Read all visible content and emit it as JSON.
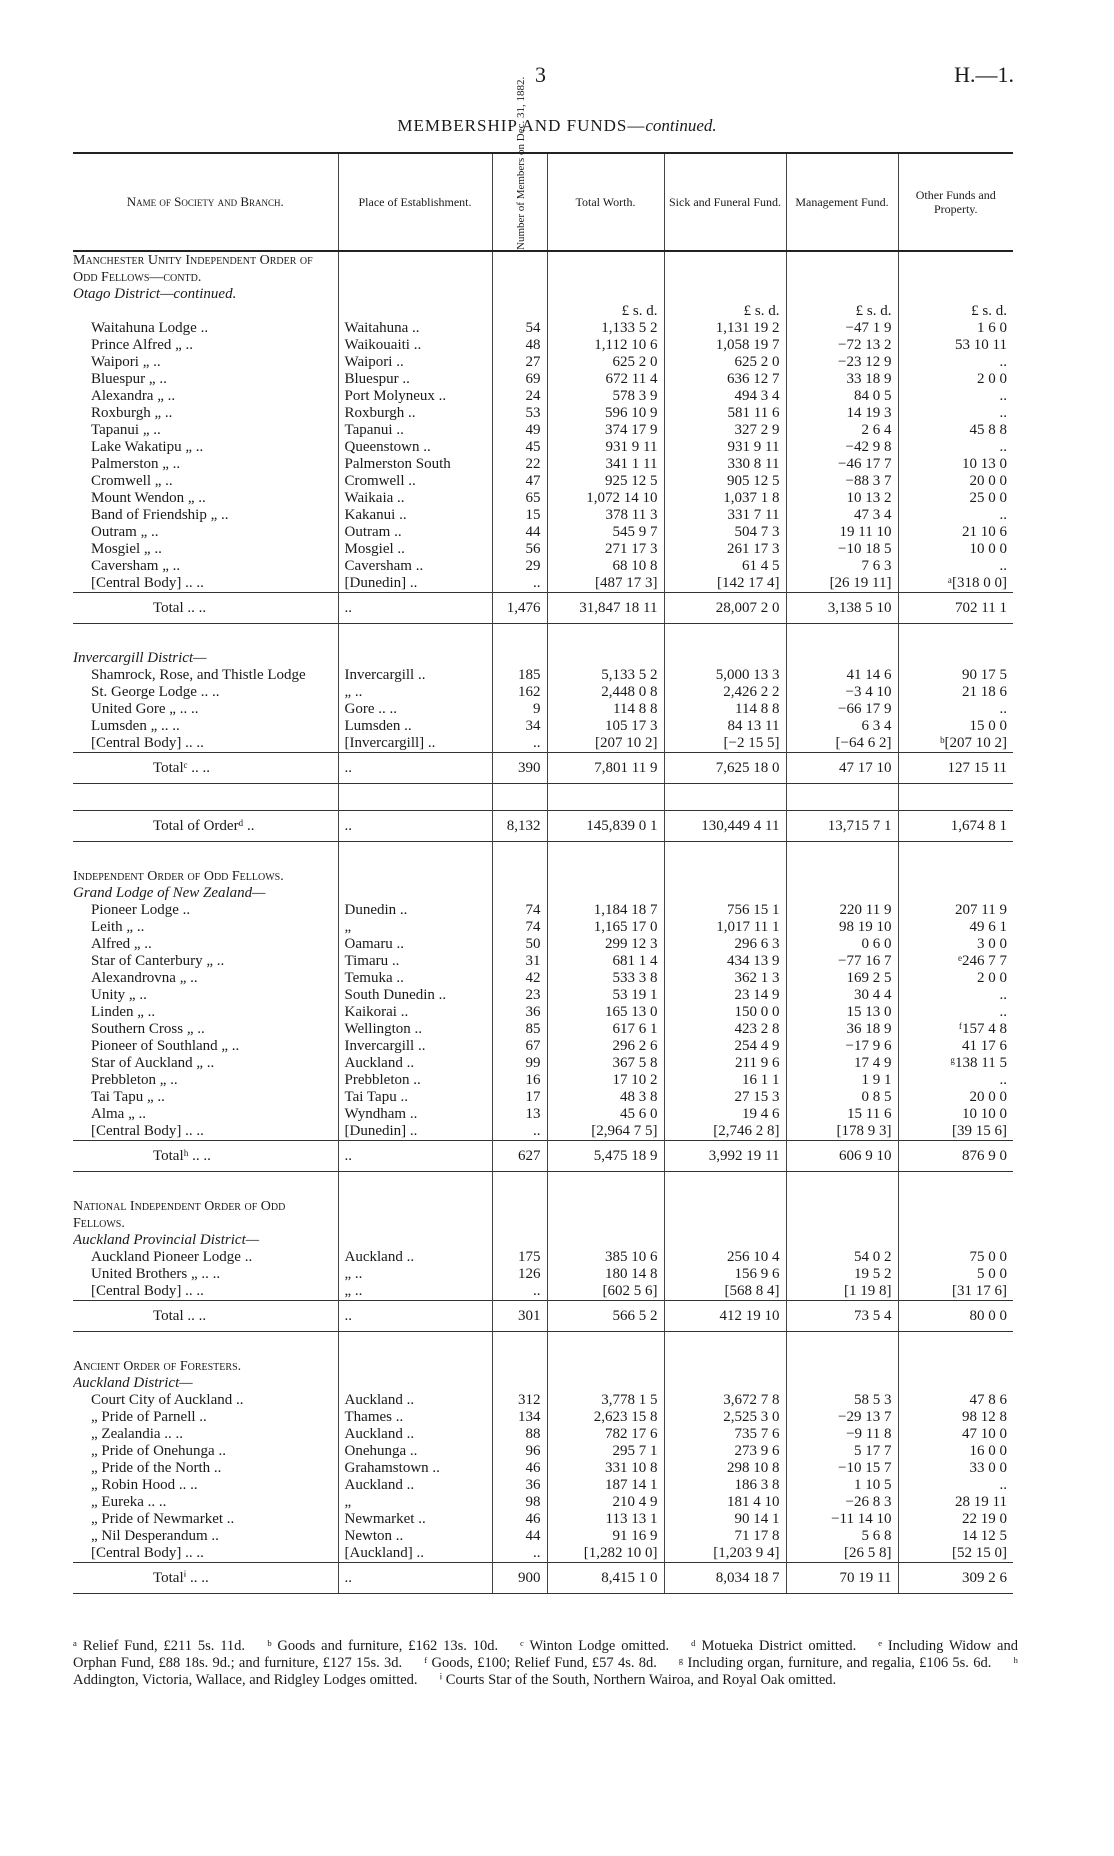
{
  "header": {
    "page_number": "3",
    "reference": "H.—1.",
    "title": "MEMBERSHIP AND FUNDS—",
    "title_italic": "continued."
  },
  "table": {
    "columns": [
      "Name of Society and Branch.",
      "Place of Establishment.",
      "Number of Members on Dec. 31, 1882.",
      "Total Worth.",
      "Sick and Funeral Fund.",
      "Management Fund.",
      "Other Funds and Property."
    ],
    "sections": [
      {
        "headings": [
          {
            "text": "Manchester Unity Independent Order of Odd Fellows—contd.",
            "style": "caps"
          },
          {
            "text": "Otago District—continued.",
            "style": "italic"
          }
        ],
        "units": [
          null,
          null,
          null,
          "£ s. d.",
          "£ s. d.",
          "£ s. d.",
          "£ s. d."
        ],
        "rows": [
          [
            "Waitahuna Lodge ..",
            "Waitahuna ..",
            "54",
            "1,133 5 2",
            "1,131 19 2",
            "−47 1 9",
            "1 6 0"
          ],
          [
            "Prince Alfred „ ..",
            "Waikouaiti ..",
            "48",
            "1,112 10 6",
            "1,058 19 7",
            "−72 13 2",
            "53 10 11"
          ],
          [
            "Waipori „ ..",
            "Waipori ..",
            "27",
            "625 2 0",
            "625 2 0",
            "−23 12 9",
            ".."
          ],
          [
            "Bluespur „ ..",
            "Bluespur ..",
            "69",
            "672 11 4",
            "636 12 7",
            "33 18 9",
            "2 0 0"
          ],
          [
            "Alexandra „ ..",
            "Port Molyneux ..",
            "24",
            "578 3 9",
            "494 3 4",
            "84 0 5",
            ".."
          ],
          [
            "Roxburgh „ ..",
            "Roxburgh ..",
            "53",
            "596 10 9",
            "581 11 6",
            "14 19 3",
            ".."
          ],
          [
            "Tapanui „ ..",
            "Tapanui ..",
            "49",
            "374 17 9",
            "327 2 9",
            "2 6 4",
            "45 8 8"
          ],
          [
            "Lake Wakatipu „ ..",
            "Queenstown ..",
            "45",
            "931 9 11",
            "931 9 11",
            "−42 9 8",
            ".."
          ],
          [
            "Palmerston „ ..",
            "Palmerston South",
            "22",
            "341 1 11",
            "330 8 11",
            "−46 17 7",
            "10 13 0"
          ],
          [
            "Cromwell „ ..",
            "Cromwell ..",
            "47",
            "925 12 5",
            "905 12 5",
            "−88 3 7",
            "20 0 0"
          ],
          [
            "Mount Wendon „ ..",
            "Waikaia ..",
            "65",
            "1,072 14 10",
            "1,037 1 8",
            "10 13 2",
            "25 0 0"
          ],
          [
            "Band of Friendship „ ..",
            "Kakanui ..",
            "15",
            "378 11 3",
            "331 7 11",
            "47 3 4",
            ".."
          ],
          [
            "Outram „ ..",
            "Outram ..",
            "44",
            "545 9 7",
            "504 7 3",
            "19 11 10",
            "21 10 6"
          ],
          [
            "Mosgiel „ ..",
            "Mosgiel ..",
            "56",
            "271 17 3",
            "261 17 3",
            "−10 18 5",
            "10 0 0"
          ],
          [
            "Caversham „ ..",
            "Caversham ..",
            "29",
            "68 10 8",
            "61 4 5",
            "7 6 3",
            ".."
          ],
          [
            "[Central Body] .. ..",
            "[Dunedin] ..",
            "..",
            "[487 17 3]",
            "[142 17 4]",
            "[26 19 11]",
            "ᵃ[318 0 0]"
          ]
        ],
        "totals": [
          [
            "Total .. ..",
            "..",
            "1,476",
            "31,847 18 11",
            "28,007 2 0",
            "3,138 5 10",
            "702 11 1"
          ]
        ]
      },
      {
        "headings": [
          {
            "text": "Invercargill District—",
            "style": "italic"
          }
        ],
        "rows": [
          [
            "Shamrock, Rose, and Thistle Lodge",
            "Invercargill ..",
            "185",
            "5,133 5 2",
            "5,000 13 3",
            "41 14 6",
            "90 17 5"
          ],
          [
            "St. George Lodge .. ..",
            "„ ..",
            "162",
            "2,448 0 8",
            "2,426 2 2",
            "−3 4 10",
            "21 18 6"
          ],
          [
            "United Gore „ .. ..",
            "Gore .. ..",
            "9",
            "114 8 8",
            "114 8 8",
            "−66 17 9",
            ".."
          ],
          [
            "Lumsden „ .. ..",
            "Lumsden ..",
            "34",
            "105 17 3",
            "84 13 11",
            "6 3 4",
            "15 0 0"
          ],
          [
            "[Central Body] .. ..",
            "[Invercargill] ..",
            "..",
            "[207 10 2]",
            "[−2 15 5]",
            "[−64 6 2]",
            "ᵇ[207 10 2]"
          ]
        ],
        "totals": [
          [
            "Totalᶜ .. ..",
            "..",
            "390",
            "7,801 11 9",
            "7,625 18 0",
            "47 17 10",
            "127 15 11"
          ],
          [
            "Total of Orderᵈ ..",
            "..",
            "8,132",
            "145,839 0 1",
            "130,449 4 11",
            "13,715 7 1",
            "1,674 8 1"
          ]
        ]
      },
      {
        "headings": [
          {
            "text": "Independent Order of Odd Fellows.",
            "style": "caps"
          },
          {
            "text": "Grand Lodge of New Zealand—",
            "style": "italic"
          }
        ],
        "rows": [
          [
            "Pioneer Lodge ..",
            "Dunedin ..",
            "74",
            "1,184 18 7",
            "756 15 1",
            "220 11 9",
            "207 11 9"
          ],
          [
            "Leith „ ..",
            "„",
            "74",
            "1,165 17 0",
            "1,017 11 1",
            "98 19 10",
            "49 6 1"
          ],
          [
            "Alfred „ ..",
            "Oamaru ..",
            "50",
            "299 12 3",
            "296 6 3",
            "0 6 0",
            "3 0 0"
          ],
          [
            "Star of Canterbury „ ..",
            "Timaru ..",
            "31",
            "681 1 4",
            "434 13 9",
            "−77 16 7",
            "ᵉ246 7 7"
          ],
          [
            "Alexandrovna „ ..",
            "Temuka ..",
            "42",
            "533 3 8",
            "362 1 3",
            "169 2 5",
            "2 0 0"
          ],
          [
            "Unity „ ..",
            "South Dunedin ..",
            "23",
            "53 19 1",
            "23 14 9",
            "30 4 4",
            ".."
          ],
          [
            "Linden „ ..",
            "Kaikorai ..",
            "36",
            "165 13 0",
            "150 0 0",
            "15 13 0",
            ".."
          ],
          [
            "Southern Cross „ ..",
            "Wellington ..",
            "85",
            "617 6 1",
            "423 2 8",
            "36 18 9",
            "ᶠ157 4 8"
          ],
          [
            "Pioneer of Southland „ ..",
            "Invercargill ..",
            "67",
            "296 2 6",
            "254 4 9",
            "−17 9 6",
            "41 17 6"
          ],
          [
            "Star of Auckland „ ..",
            "Auckland ..",
            "99",
            "367 5 8",
            "211 9 6",
            "17 4 9",
            "ᵍ138 11 5"
          ],
          [
            "Prebbleton „ ..",
            "Prebbleton ..",
            "16",
            "17 10 2",
            "16 1 1",
            "1 9 1",
            ".."
          ],
          [
            "Tai Tapu „ ..",
            "Tai Tapu ..",
            "17",
            "48 3 8",
            "27 15 3",
            "0 8 5",
            "20 0 0"
          ],
          [
            "Alma „ ..",
            "Wyndham ..",
            "13",
            "45 6 0",
            "19 4 6",
            "15 11 6",
            "10 10 0"
          ],
          [
            "[Central Body] .. ..",
            "[Dunedin] ..",
            "..",
            "[2,964 7 5]",
            "[2,746 2 8]",
            "[178 9 3]",
            "[39 15 6]"
          ]
        ],
        "totals": [
          [
            "Totalʰ .. ..",
            "..",
            "627",
            "5,475 18 9",
            "3,992 19 11",
            "606 9 10",
            "876 9 0"
          ]
        ]
      },
      {
        "headings": [
          {
            "text": "National Independent Order of Odd Fellows.",
            "style": "caps"
          },
          {
            "text": "Auckland Provincial District—",
            "style": "italic"
          }
        ],
        "rows": [
          [
            "Auckland Pioneer Lodge ..",
            "Auckland ..",
            "175",
            "385 10 6",
            "256 10 4",
            "54 0 2",
            "75 0 0"
          ],
          [
            "United Brothers „ .. ..",
            "„ ..",
            "126",
            "180 14 8",
            "156 9 6",
            "19 5 2",
            "5 0 0"
          ],
          [
            "[Central Body] .. ..",
            "„ ..",
            "..",
            "[602 5 6]",
            "[568 8 4]",
            "[1 19 8]",
            "[31 17 6]"
          ]
        ],
        "totals": [
          [
            "Total .. ..",
            "..",
            "301",
            "566 5 2",
            "412 19 10",
            "73 5 4",
            "80 0 0"
          ]
        ]
      },
      {
        "headings": [
          {
            "text": "Ancient Order of Foresters.",
            "style": "caps"
          },
          {
            "text": "Auckland District—",
            "style": "italic"
          }
        ],
        "rows": [
          [
            "Court City of Auckland ..",
            "Auckland ..",
            "312",
            "3,778 1 5",
            "3,672 7 8",
            "58 5 3",
            "47 8 6"
          ],
          [
            "„ Pride of Parnell ..",
            "Thames ..",
            "134",
            "2,623 15 8",
            "2,525 3 0",
            "−29 13 7",
            "98 12 8"
          ],
          [
            "„ Zealandia .. ..",
            "Auckland ..",
            "88",
            "782 17 6",
            "735 7 6",
            "−9 11 8",
            "47 10 0"
          ],
          [
            "„ Pride of Onehunga ..",
            "Onehunga ..",
            "96",
            "295 7 1",
            "273 9 6",
            "5 17 7",
            "16 0 0"
          ],
          [
            "„ Pride of the North ..",
            "Grahamstown ..",
            "46",
            "331 10 8",
            "298 10 8",
            "−10 15 7",
            "33 0 0"
          ],
          [
            "„ Robin Hood .. ..",
            "Auckland ..",
            "36",
            "187 14 1",
            "186 3 8",
            "1 10 5",
            ".."
          ],
          [
            "„ Eureka .. ..",
            "„",
            "98",
            "210 4 9",
            "181 4 10",
            "−26 8 3",
            "28 19 11"
          ],
          [
            "„ Pride of Newmarket ..",
            "Newmarket ..",
            "46",
            "113 13 1",
            "90 14 1",
            "−11 14 10",
            "22 19 0"
          ],
          [
            "„ Nil Desperandum ..",
            "Newton ..",
            "44",
            "91 16 9",
            "71 17 8",
            "5 6 8",
            "14 12 5"
          ],
          [
            "[Central Body] .. ..",
            "[Auckland] ..",
            "..",
            "[1,282 10 0]",
            "[1,203 9 4]",
            "[26 5 8]",
            "[52 15 0]"
          ]
        ],
        "totals": [
          [
            "Totalⁱ .. ..",
            "..",
            "900",
            "8,415 1 0",
            "8,034 18 7",
            "70 19 11",
            "309 2 6"
          ]
        ]
      }
    ]
  },
  "footnotes": [
    "ᵃ Relief Fund, £211 5s. 11d.",
    "ᵇ Goods and furniture, £162 13s. 10d.",
    "ᶜ Winton Lodge omitted.",
    "ᵈ Motueka District omitted.",
    "ᵉ Including Widow and Orphan Fund, £88 18s. 9d.; and furniture, £127 15s. 3d.",
    "ᶠ Goods, £100; Relief Fund, £57 4s. 8d.",
    "ᵍ Including organ, furniture, and regalia, £106 5s. 6d.",
    "ʰ Addington, Victoria, Wallace, and Ridgley Lodges omitted.",
    "ⁱ Courts Star of the South, Northern Wairoa, and Royal Oak omitted."
  ]
}
